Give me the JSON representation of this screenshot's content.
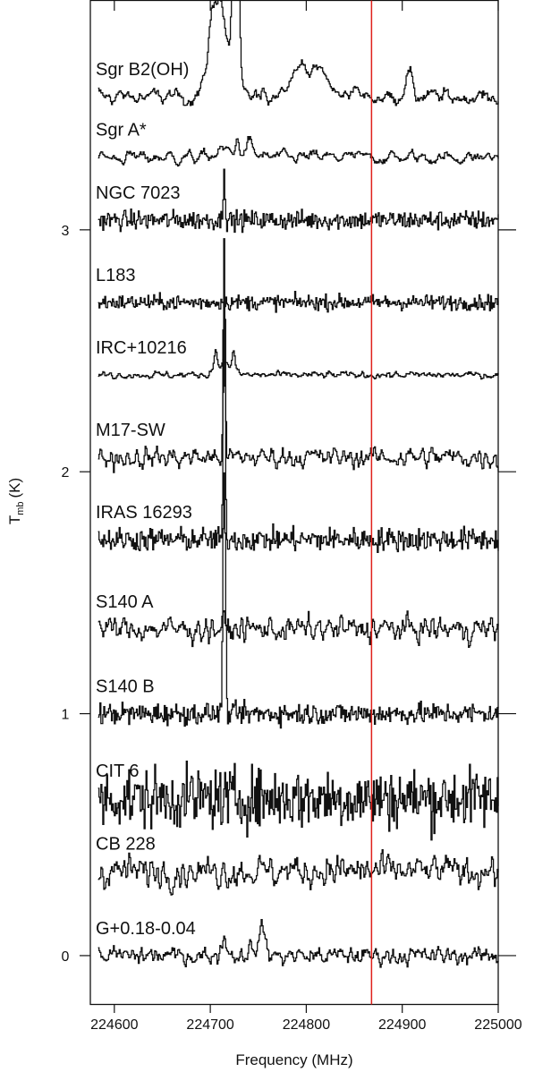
{
  "chart_data": {
    "type": "line",
    "xlabel": "Frequency (MHz)",
    "ylabel_main": "T",
    "ylabel_sub": "mb",
    "ylabel_unit": "(K)",
    "xlim": [
      224575,
      225000
    ],
    "ylim": [
      -0.2,
      3.95
    ],
    "x_ticks": [
      224600,
      224700,
      224800,
      224900,
      225000
    ],
    "x_tick_labels": [
      "224600",
      "224700",
      "224800",
      "224900",
      "225000"
    ],
    "y_ticks": [
      0,
      1,
      2,
      3
    ],
    "y_tick_labels": [
      "0",
      "1",
      "2",
      "3"
    ],
    "marker_line": {
      "x": 224868,
      "color": "#e0201b"
    },
    "grid": false,
    "series": [
      {
        "name": "Sgr B2(OH)",
        "offset": 3.55,
        "noise": 0.01,
        "smooth": 3,
        "peaks": [
          [
            224708,
            0.42,
            8
          ],
          [
            224726,
            1.5,
            2.5
          ],
          [
            224700,
            0.06,
            3
          ],
          [
            224796,
            0.13,
            14
          ],
          [
            224818,
            0.06,
            6
          ],
          [
            224848,
            0.04,
            4
          ],
          [
            224906,
            0.09,
            4
          ]
        ]
      },
      {
        "name": "Sgr A*",
        "offset": 3.3,
        "noise": 0.008,
        "smooth": 3,
        "peaks": [
          [
            224728,
            0.07,
            2
          ],
          [
            224741,
            0.06,
            3.5
          ],
          [
            224715,
            0.03,
            8
          ]
        ]
      },
      {
        "name": "NGC 7023",
        "offset": 3.04,
        "noise": 0.009,
        "smooth": 1,
        "peaks": [
          [
            224714,
            0.22,
            0.9
          ]
        ]
      },
      {
        "name": "L183",
        "offset": 2.7,
        "noise": 0.007,
        "smooth": 1,
        "peaks": []
      },
      {
        "name": "IRC+10216",
        "offset": 2.4,
        "noise": 0.004,
        "smooth": 2,
        "peaks": [
          [
            224705,
            0.08,
            1.5
          ],
          [
            224724,
            0.07,
            1.5
          ],
          [
            224714,
            0.05,
            8
          ]
        ]
      },
      {
        "name": "M17-SW",
        "offset": 2.06,
        "noise": 0.012,
        "smooth": 2,
        "peaks": [
          [
            224714,
            0.88,
            1.0
          ]
        ]
      },
      {
        "name": "IRAS 16293",
        "offset": 1.72,
        "noise": 0.011,
        "smooth": 1,
        "peaks": [
          [
            224714,
            0.98,
            1.0
          ]
        ]
      },
      {
        "name": "S140 A",
        "offset": 1.35,
        "noise": 0.014,
        "smooth": 2,
        "peaks": [
          [
            224714,
            0.03,
            1.0
          ]
        ]
      },
      {
        "name": "S140 B",
        "offset": 1.0,
        "noise": 0.01,
        "smooth": 1,
        "peaks": [
          [
            224714,
            1.0,
            1.3
          ]
        ]
      },
      {
        "name": "CIT 6",
        "offset": 0.65,
        "noise": 0.028,
        "smooth": 1,
        "peaks": []
      },
      {
        "name": "CB 228",
        "offset": 0.35,
        "noise": 0.018,
        "smooth": 2,
        "peaks": []
      },
      {
        "name": "G+0.18-0.04",
        "offset": 0.0,
        "noise": 0.01,
        "smooth": 2,
        "peaks": [
          [
            224714,
            0.07,
            3
          ],
          [
            224754,
            0.12,
            3
          ],
          [
            224742,
            0.03,
            4
          ]
        ]
      }
    ]
  }
}
